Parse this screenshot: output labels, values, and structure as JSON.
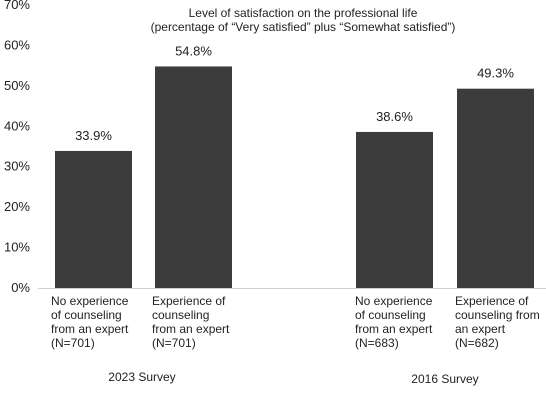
{
  "chart_data": {
    "type": "bar",
    "title": "Level of satisfaction on the professional life",
    "subtitle": "(percentage of “Very satisfied” plus “Somewhat satisfied”)",
    "ylim": [
      0,
      70
    ],
    "yticks": [
      "0%",
      "10%",
      "20%",
      "30%",
      "40%",
      "50%",
      "60%",
      "70%"
    ],
    "ytick_values": [
      0,
      10,
      20,
      30,
      40,
      50,
      60,
      70
    ],
    "bar_color": "#3c3c3c",
    "grid": false,
    "categories": [
      "No experience\nof counseling\nfrom an expert\n(N=701)",
      "Experience of\ncounseling\nfrom an expert\n(N=701)",
      "No experience\nof counseling\nfrom an expert\n(N=683)",
      "Experience of\ncounseling from\nan expert\n(N=682)"
    ],
    "values": [
      33.9,
      54.8,
      38.6,
      49.3
    ],
    "data_labels": [
      "33.9%",
      "54.8%",
      "38.6%",
      "49.3%"
    ],
    "groups": [
      {
        "label": "2023 Survey",
        "categories": [
          0,
          1
        ]
      },
      {
        "label": "2016 Survey",
        "categories": [
          2,
          3
        ]
      }
    ]
  }
}
